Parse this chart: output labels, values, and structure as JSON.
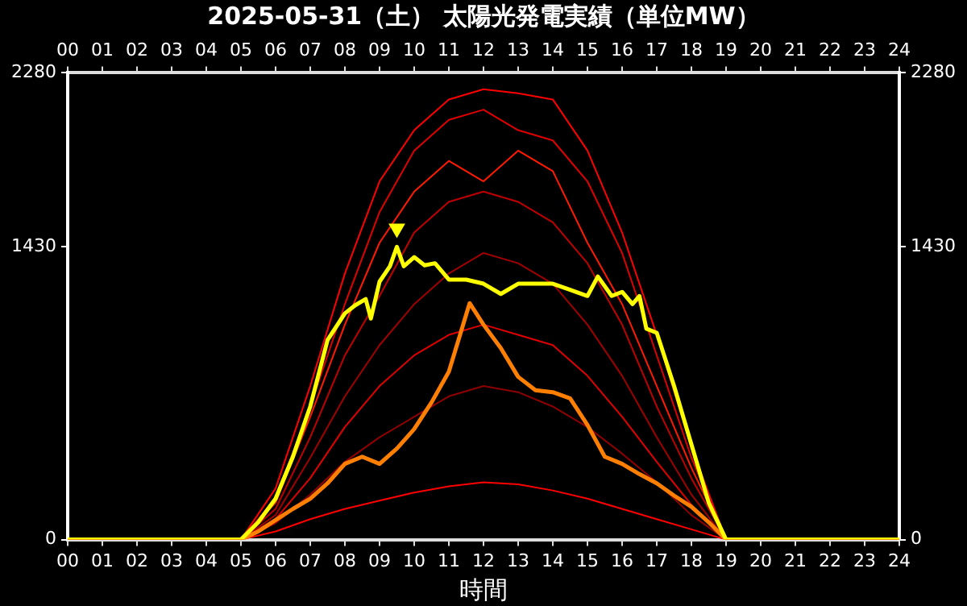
{
  "chart_data": {
    "type": "line",
    "title": "2025-05-31（土） 太陽光発電実績（単位MW）",
    "xlabel": "時間",
    "xlim": [
      0,
      24
    ],
    "xticks": [
      {
        "value": 0,
        "label": "00"
      },
      {
        "value": 1,
        "label": "01"
      },
      {
        "value": 2,
        "label": "02"
      },
      {
        "value": 3,
        "label": "03"
      },
      {
        "value": 4,
        "label": "04"
      },
      {
        "value": 5,
        "label": "05"
      },
      {
        "value": 6,
        "label": "06"
      },
      {
        "value": 7,
        "label": "07"
      },
      {
        "value": 8,
        "label": "08"
      },
      {
        "value": 9,
        "label": "09"
      },
      10,
      11,
      12,
      13,
      14,
      15,
      16,
      17,
      18,
      19,
      20,
      21,
      22,
      23,
      24
    ],
    "x2lim": [
      0,
      24
    ],
    "x2ticks": [
      {
        "value": 0,
        "label": "00"
      },
      {
        "value": 1,
        "label": "01"
      },
      {
        "value": 2,
        "label": "02"
      },
      {
        "value": 3,
        "label": "03"
      },
      {
        "value": 4,
        "label": "04"
      },
      {
        "value": 5,
        "label": "05"
      },
      {
        "value": 6,
        "label": "06"
      },
      {
        "value": 7,
        "label": "07"
      },
      {
        "value": 8,
        "label": "08"
      },
      {
        "value": 9,
        "label": "09"
      },
      10,
      11,
      12,
      13,
      14,
      15,
      16,
      17,
      18,
      19,
      20,
      21,
      22,
      23,
      24
    ],
    "ylim": [
      0,
      2280
    ],
    "yticks": [
      0,
      1430,
      2280
    ],
    "y2lim": [
      0,
      2280
    ],
    "y2ticks": [
      0,
      1430,
      2280
    ],
    "grid": false,
    "legend": false,
    "marker": "none",
    "line_style": "solid",
    "series": [
      {
        "color": "#ff0000",
        "x": [
          0,
          5,
          6,
          7,
          8,
          9,
          10,
          11,
          12,
          13,
          14,
          15,
          16,
          17,
          18,
          19,
          24
        ],
        "values": [
          0,
          0,
          250,
          750,
          1300,
          1750,
          2000,
          2150,
          2200,
          2180,
          2150,
          1900,
          1500,
          1000,
          450,
          0,
          0
        ]
      },
      {
        "color": "#e00000",
        "x": [
          0,
          5,
          6,
          7,
          8,
          9,
          10,
          11,
          12,
          13,
          14,
          15,
          16,
          17,
          18,
          19,
          24
        ],
        "values": [
          0,
          0,
          200,
          650,
          1150,
          1600,
          1900,
          2050,
          2100,
          2000,
          1950,
          1750,
          1400,
          900,
          400,
          0,
          0
        ]
      },
      {
        "color": "#ff1a00",
        "x": [
          0,
          5,
          6,
          7,
          8,
          9,
          10,
          11,
          12,
          13,
          14,
          15,
          16,
          17,
          18,
          19,
          24
        ],
        "values": [
          0,
          0,
          180,
          600,
          1050,
          1450,
          1700,
          1850,
          1750,
          1900,
          1800,
          1450,
          1150,
          750,
          350,
          0,
          0
        ]
      },
      {
        "color": "#c00000",
        "x": [
          0,
          5,
          6,
          7,
          8,
          9,
          10,
          11,
          12,
          13,
          14,
          15,
          16,
          17,
          18,
          19,
          24
        ],
        "values": [
          0,
          0,
          150,
          500,
          900,
          1190,
          1500,
          1650,
          1700,
          1650,
          1550,
          1350,
          1050,
          650,
          300,
          0,
          0
        ]
      },
      {
        "color": "#a00000",
        "x": [
          0,
          5,
          6,
          7,
          8,
          9,
          10,
          11,
          12,
          13,
          14,
          15,
          16,
          17,
          18,
          19,
          24
        ],
        "values": [
          0,
          0,
          120,
          400,
          700,
          950,
          1150,
          1300,
          1400,
          1350,
          1250,
          1050,
          800,
          500,
          220,
          0,
          0
        ]
      },
      {
        "color": "#e00000",
        "x": [
          0,
          5,
          6,
          7,
          8,
          9,
          10,
          11,
          12,
          13,
          14,
          15,
          16,
          17,
          18,
          19,
          24
        ],
        "values": [
          0,
          0,
          100,
          300,
          550,
          750,
          900,
          1000,
          1050,
          1000,
          950,
          800,
          600,
          380,
          170,
          0,
          0
        ]
      },
      {
        "color": "#900000",
        "x": [
          0,
          5,
          6,
          7,
          8,
          9,
          10,
          11,
          12,
          13,
          14,
          15,
          16,
          17,
          18,
          19,
          24
        ],
        "values": [
          0,
          0,
          80,
          220,
          380,
          500,
          600,
          700,
          750,
          720,
          650,
          550,
          420,
          280,
          120,
          0,
          0
        ]
      },
      {
        "color": "#ff0000",
        "x": [
          0,
          5,
          6,
          7,
          8,
          9,
          10,
          11,
          12,
          13,
          14,
          15,
          16,
          17,
          18,
          19,
          24
        ],
        "values": [
          0,
          0,
          40,
          100,
          150,
          190,
          230,
          260,
          280,
          270,
          240,
          200,
          150,
          100,
          50,
          0,
          0
        ]
      },
      {
        "color": "#ff8000",
        "x": [
          0,
          5,
          5.5,
          6,
          6.5,
          7,
          7.5,
          8,
          8.5,
          9,
          9.5,
          10,
          10.5,
          11,
          11.6,
          12,
          12.5,
          13,
          13.5,
          14,
          14.5,
          15,
          15.5,
          16,
          16.5,
          17,
          17.5,
          18,
          18.5,
          19,
          24
        ],
        "values": [
          0,
          0,
          40,
          95,
          150,
          200,
          275,
          370,
          405,
          370,
          445,
          540,
          670,
          820,
          1155,
          1050,
          935,
          795,
          730,
          720,
          690,
          560,
          405,
          370,
          320,
          275,
          215,
          160,
          85,
          0,
          0
        ]
      },
      {
        "color": "#ffff00",
        "x": [
          0,
          5,
          5.5,
          6,
          6.5,
          7,
          7.5,
          8,
          8.3,
          8.6,
          8.75,
          9,
          9.3,
          9.5,
          9.7,
          10,
          10.3,
          10.6,
          11,
          11.5,
          12,
          12.5,
          13,
          14,
          14.5,
          15,
          15.3,
          15.7,
          16,
          16.3,
          16.5,
          16.7,
          17,
          17.5,
          18,
          18.5,
          19,
          24
        ],
        "values": [
          0,
          0,
          85,
          200,
          405,
          650,
          975,
          1105,
          1145,
          1175,
          1080,
          1260,
          1335,
          1430,
          1335,
          1380,
          1340,
          1350,
          1270,
          1270,
          1250,
          1200,
          1250,
          1250,
          1220,
          1190,
          1285,
          1190,
          1210,
          1150,
          1190,
          1030,
          1010,
          750,
          465,
          180,
          0,
          0
        ]
      },
      {
        "type": "scatter",
        "color": "#ffff00",
        "marker": "triangle",
        "x": [
          9.5
        ],
        "values": [
          1520
        ]
      }
    ]
  }
}
